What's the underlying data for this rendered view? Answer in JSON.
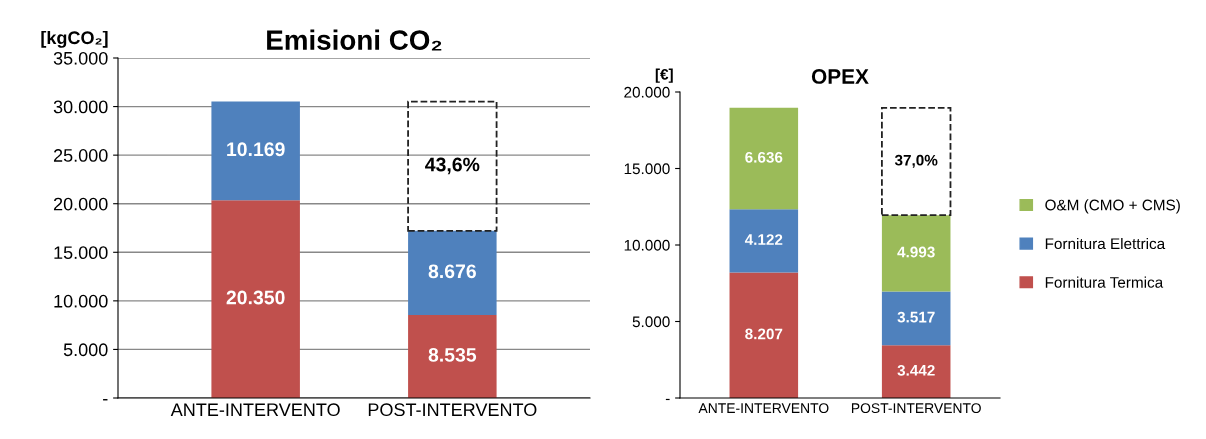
{
  "chart_data": [
    {
      "type": "bar",
      "stacked": true,
      "title": "Emisioni CO₂",
      "ylabel": "[kgCO₂]",
      "categories": [
        "ANTE-INTERVENTO",
        "POST-INTERVENTO"
      ],
      "series": [
        {
          "color": "#c0504d",
          "values": [
            20350,
            8535
          ],
          "value_labels": [
            "20.350",
            "8.535"
          ]
        },
        {
          "color": "#4f81bd",
          "values": [
            10169,
            8676
          ],
          "value_labels": [
            "10.169",
            "8.676"
          ]
        }
      ],
      "ylim": [
        0,
        35000
      ],
      "yticks": [
        {
          "value": 0,
          "label": "-"
        },
        {
          "value": 5000,
          "label": "5.000"
        },
        {
          "value": 10000,
          "label": "10.000"
        },
        {
          "value": 15000,
          "label": "15.000"
        },
        {
          "value": 20000,
          "label": "20.000"
        },
        {
          "value": 25000,
          "label": "25.000"
        },
        {
          "value": 30000,
          "label": "30.000"
        },
        {
          "value": 35000,
          "label": "35.000"
        }
      ],
      "grid": "y",
      "legend": false,
      "annotations": [
        "43,6%"
      ]
    },
    {
      "type": "bar",
      "stacked": true,
      "title": "OPEX",
      "ylabel": "[€]",
      "categories": [
        "ANTE-INTERVENTO",
        "POST-INTERVENTO"
      ],
      "series": [
        {
          "name": "Fornitura Termica",
          "color": "#c0504d",
          "values": [
            8207,
            3442
          ],
          "value_labels": [
            "8.207",
            "3.442"
          ]
        },
        {
          "name": "Fornitura Elettrica",
          "color": "#4f81bd",
          "values": [
            4122,
            3517
          ],
          "value_labels": [
            "4.122",
            "3.517"
          ]
        },
        {
          "name": "O&M (CMO + CMS)",
          "color": "#9bbb59",
          "values": [
            6636,
            4993
          ],
          "value_labels": [
            "6.636",
            "4.993"
          ]
        }
      ],
      "ylim": [
        0,
        20000
      ],
      "yticks": [
        {
          "value": 0,
          "label": "-"
        },
        {
          "value": 5000,
          "label": "5.000"
        },
        {
          "value": 10000,
          "label": "10.000"
        },
        {
          "value": 15000,
          "label": "15.000"
        },
        {
          "value": 20000,
          "label": "20.000"
        }
      ],
      "grid": false,
      "legend": "right",
      "annotations": [
        "37,0%"
      ]
    }
  ]
}
